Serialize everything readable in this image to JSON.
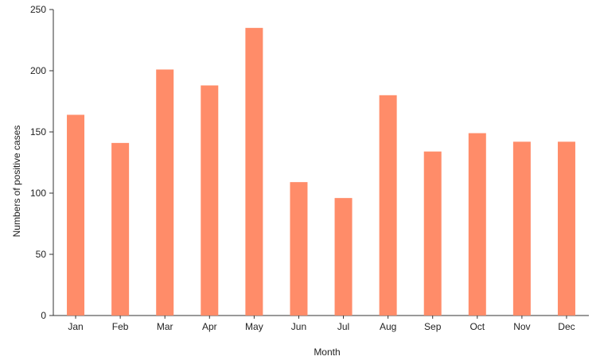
{
  "chart_data": {
    "type": "bar",
    "categories": [
      "Jan",
      "Feb",
      "Mar",
      "Apr",
      "May",
      "Jun",
      "Jul",
      "Aug",
      "Sep",
      "Oct",
      "Nov",
      "Dec"
    ],
    "values": [
      164,
      141,
      201,
      188,
      235,
      109,
      96,
      180,
      134,
      149,
      142,
      142
    ],
    "title": "",
    "xlabel": "Month",
    "ylabel": "Numbers of positive cases",
    "ylim": [
      0,
      250
    ],
    "yticks": [
      0,
      50,
      100,
      150,
      200,
      250
    ],
    "grid": false,
    "bar_color": "#ff8c69",
    "axis_color": "#333333"
  }
}
